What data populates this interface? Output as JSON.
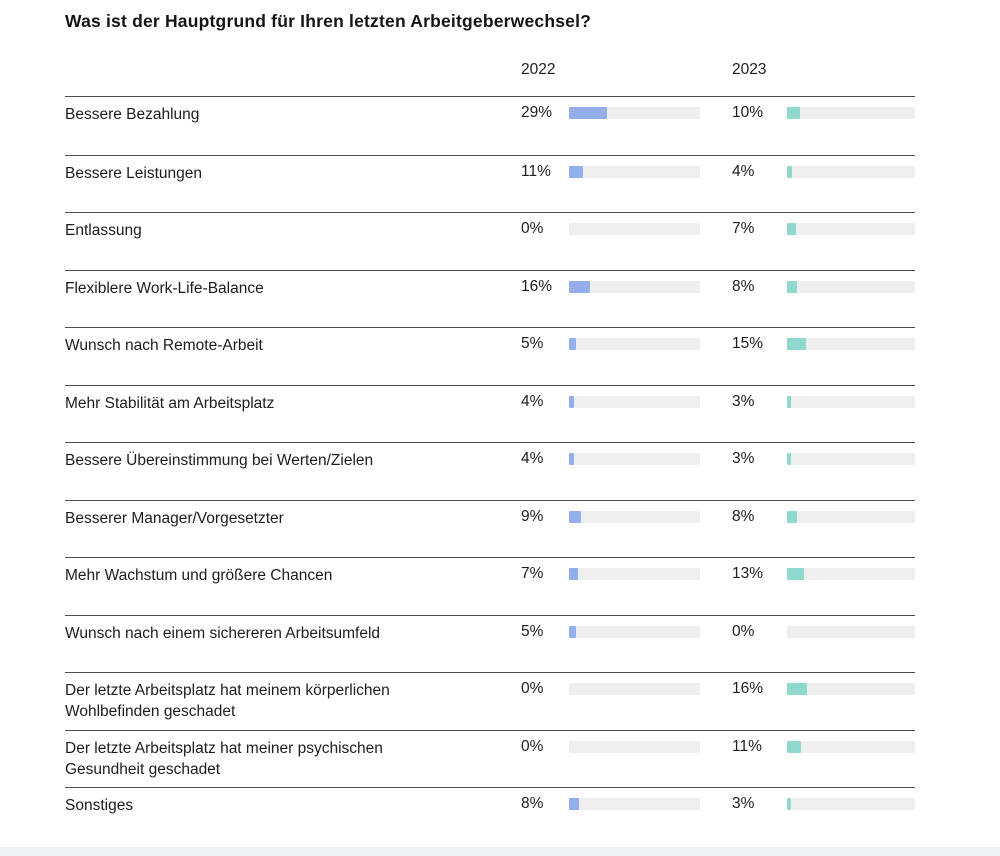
{
  "title": "Was ist der Hauptgrund für Ihren letzten Arbeitgeberwechsel?",
  "columns": [
    "2022",
    "2023"
  ],
  "colors": {
    "bar_2022": "#94aeec",
    "bar_2023": "#8fd8ce",
    "bar_track": "#efefef",
    "separator": "#4d4d4d",
    "text": "#1d1d1d",
    "footer_strip": "#eef1f4"
  },
  "value_suffix": "%",
  "chart_data": {
    "type": "bar",
    "title": "Was ist der Hauptgrund für Ihren letzten Arbeitgeberwechsel?",
    "orientation": "horizontal",
    "value_format": "percent",
    "xlim": [
      0,
      100
    ],
    "grid": false,
    "legend_position": "column-headers",
    "categories": [
      "Bessere Bezahlung",
      "Bessere Leistungen",
      "Entlassung",
      "Flexiblere Work-Life-Balance",
      "Wunsch nach Remote-Arbeit",
      "Mehr Stabilität am Arbeitsplatz",
      "Bessere Übereinstimmung bei Werten/Zielen",
      "Besserer Manager/Vorgesetzter",
      "Mehr Wachstum und größere Chancen",
      "Wunsch nach einem sichereren Arbeitsumfeld",
      "Der letzte Arbeitsplatz hat meinem körperlichen\nWohlbefinden geschadet",
      "Der letzte Arbeitsplatz hat meiner psychischen\nGesundheit geschadet",
      "Sonstiges"
    ],
    "series": [
      {
        "name": "2022",
        "values": [
          29,
          11,
          0,
          16,
          5,
          4,
          4,
          9,
          7,
          5,
          0,
          0,
          8
        ]
      },
      {
        "name": "2023",
        "values": [
          10,
          4,
          7,
          8,
          15,
          3,
          3,
          8,
          13,
          0,
          16,
          11,
          3
        ]
      }
    ]
  }
}
